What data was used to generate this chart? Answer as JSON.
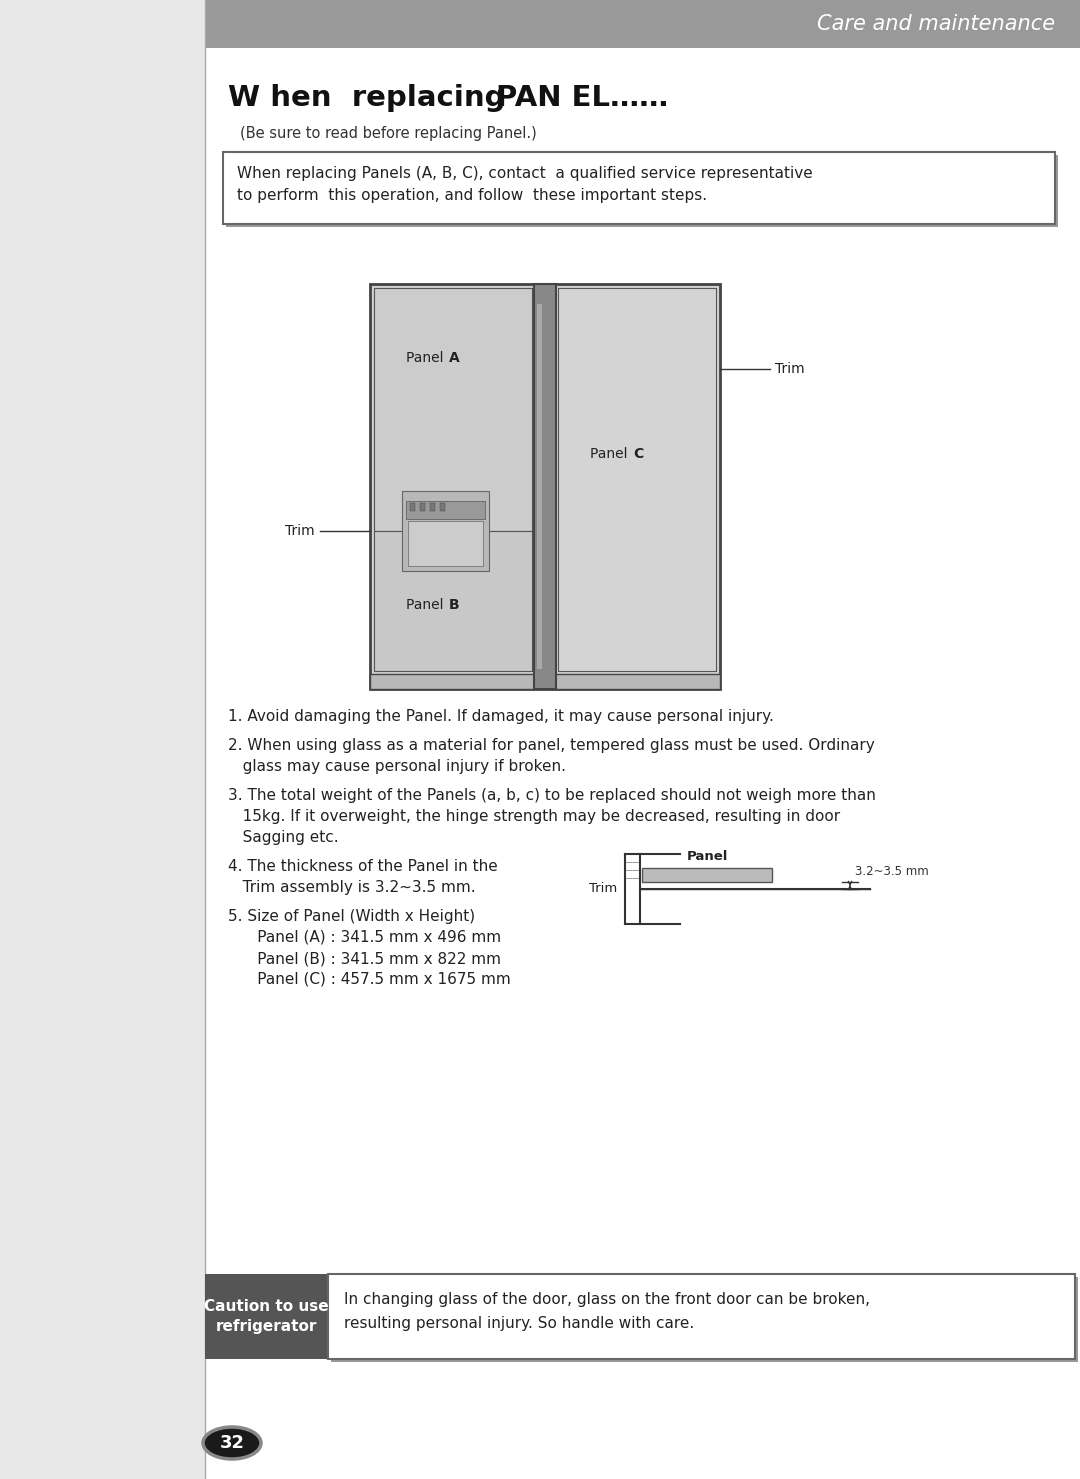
{
  "title_normal": "When replacing ",
  "title_bold": "PANEL……",
  "subtitle": "(Be sure to read before replacing Panel.)",
  "header_text": "Care and maintenance",
  "header_bg": "#999999",
  "page_bg": "#ffffff",
  "warning_box_text_line1": "When replacing Panels (A, B, C), contact  a qualified service representative",
  "warning_box_text_line2": "to perform  this operation, and follow  these important steps.",
  "bullet1": "1. Avoid damaging the Panel. If damaged, it may cause personal injury.",
  "bullet2_line1": "2. When using glass as a material for panel, tempered glass must be used. Ordinary",
  "bullet2_line2": "   glass may cause personal injury if broken.",
  "bullet3_line1": "3. The total weight of the Panels (a, b, c) to be replaced should not weigh more than",
  "bullet3_line2": "   15kg. If it overweight, the hinge strength may be decreased, resulting in door",
  "bullet3_line3": "   Sagging etc.",
  "bullet4_line1": "4. The thickness of the Panel in the",
  "bullet4_line2": "   Trim assembly is 3.2~3.5 mm.",
  "bullet5_line1": "5. Size of Panel (Width x Height)",
  "bullet5_line2": "      Panel (A) : 341.5 mm x 496 mm",
  "bullet5_line3": "      Panel (B) : 341.5 mm x 822 mm",
  "bullet5_line4": "      Panel (C) : 457.5 mm x 1675 mm",
  "caution_label": "Caution to use\nrefrigerator",
  "caution_label_bg": "#555555",
  "caution_text_line1": "In changing glass of the door, glass on the front door can be broken,",
  "caution_text_line2": "resulting personal injury. So handle with care.",
  "page_number": "32"
}
